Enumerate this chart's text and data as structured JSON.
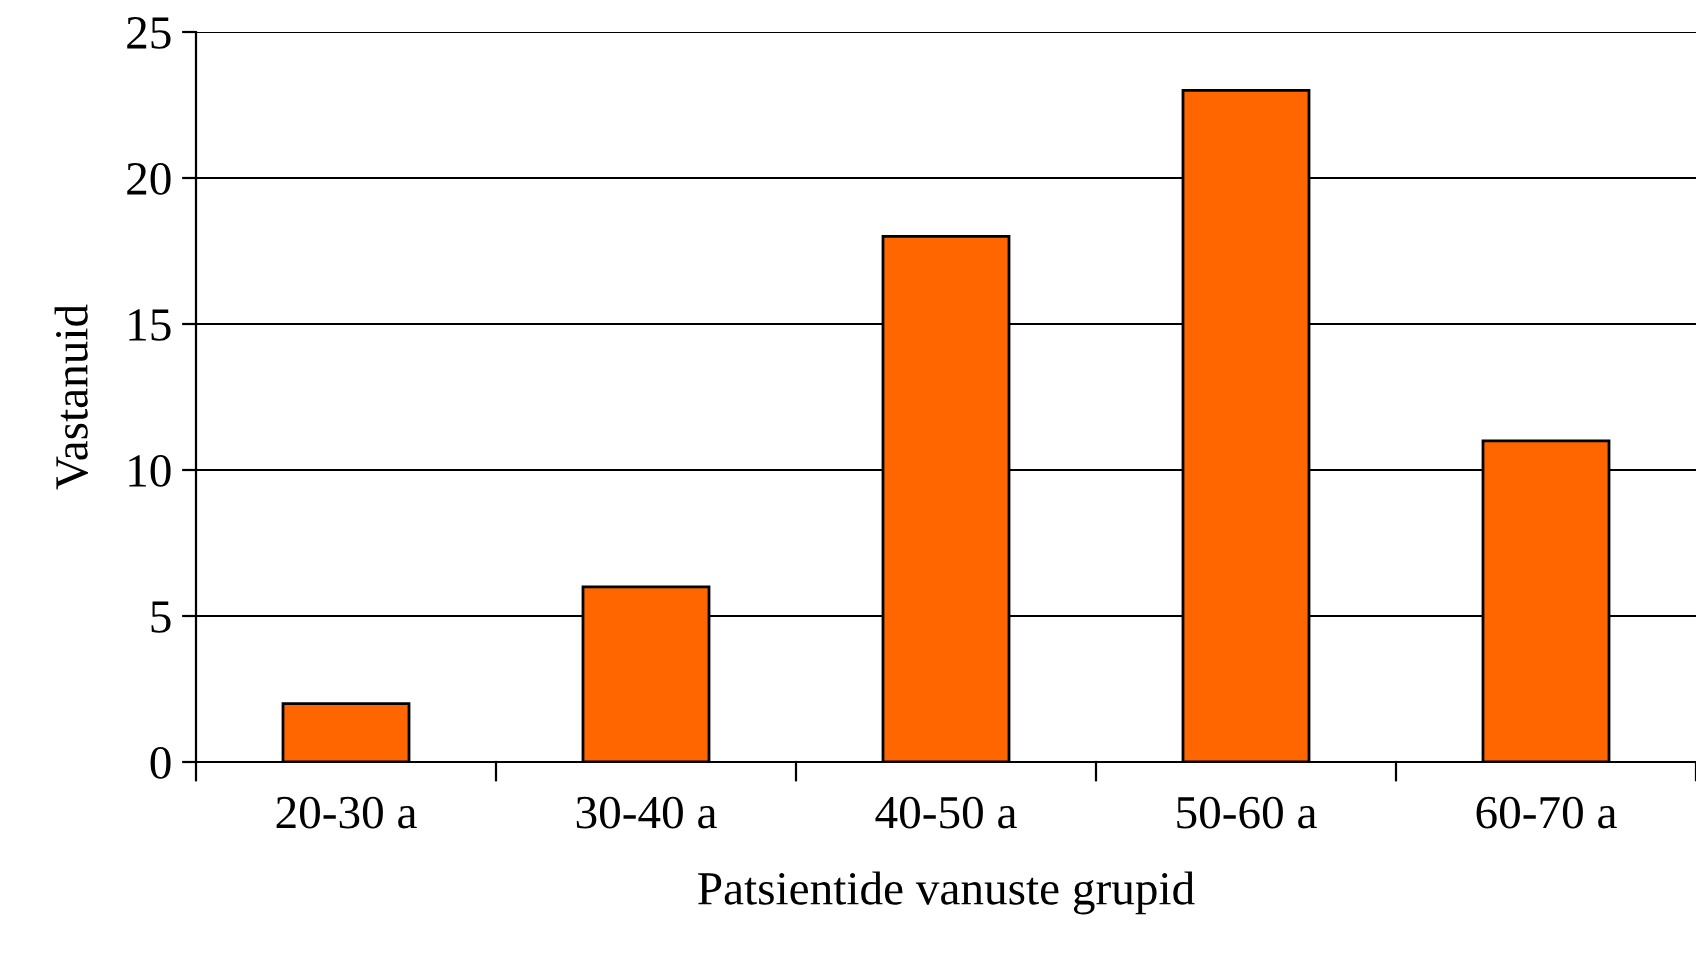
{
  "chart_data": {
    "type": "bar",
    "xlabel": "Patsientide vanuste grupid",
    "ylabel": "Vastanuid",
    "categories": [
      "20-30 a",
      "30-40 a",
      "40-50 a",
      "50-60 a",
      "60-70 a"
    ],
    "values": [
      2,
      6,
      18,
      23,
      11
    ],
    "color": "#ff6600",
    "ylim": [
      0,
      25
    ],
    "yticks": [
      0,
      5,
      10,
      15,
      20,
      25
    ],
    "grid": "y",
    "legend": false
  }
}
